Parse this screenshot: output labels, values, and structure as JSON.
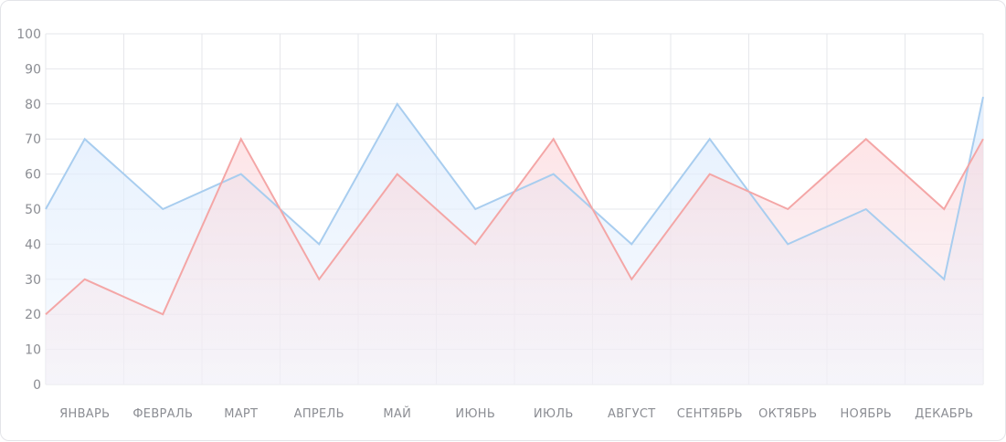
{
  "chart_data": {
    "type": "area",
    "title": "",
    "xlabel": "",
    "ylabel": "",
    "ylim": [
      0,
      100
    ],
    "yticks": [
      0,
      10,
      20,
      30,
      40,
      50,
      60,
      70,
      80,
      90,
      100
    ],
    "grid": true,
    "months": [
      "ЯНВАРЬ",
      "ФЕВРАЛЬ",
      "МАРТ",
      "АПРЕЛЬ",
      "МАЙ",
      "ИЮНЬ",
      "ИЮЛЬ",
      "АВГУСТ",
      "СЕНТЯБРЬ",
      "ОКТЯБРЬ",
      "НОЯБРЬ",
      "ДЕКАБРЬ"
    ],
    "series": [
      {
        "color": "#a8cdef",
        "fill": "#dbeafe",
        "x": [
          0,
          0.5,
          1.5,
          2.5,
          3.5,
          4.5,
          5.5,
          6.5,
          7.5,
          8.5,
          9.5,
          10.5,
          11.5,
          12.0
        ],
        "values": [
          50,
          70,
          50,
          60,
          40,
          80,
          50,
          60,
          40,
          70,
          40,
          50,
          30,
          82
        ]
      },
      {
        "color": "#f4a6a6",
        "fill": "#fdd6d9",
        "x": [
          0,
          0.5,
          1.5,
          2.5,
          3.5,
          4.5,
          5.5,
          6.5,
          7.5,
          8.5,
          9.5,
          10.5,
          11.5,
          12.0
        ],
        "values": [
          20,
          30,
          20,
          70,
          30,
          60,
          40,
          70,
          30,
          60,
          50,
          70,
          50,
          70
        ]
      }
    ]
  }
}
